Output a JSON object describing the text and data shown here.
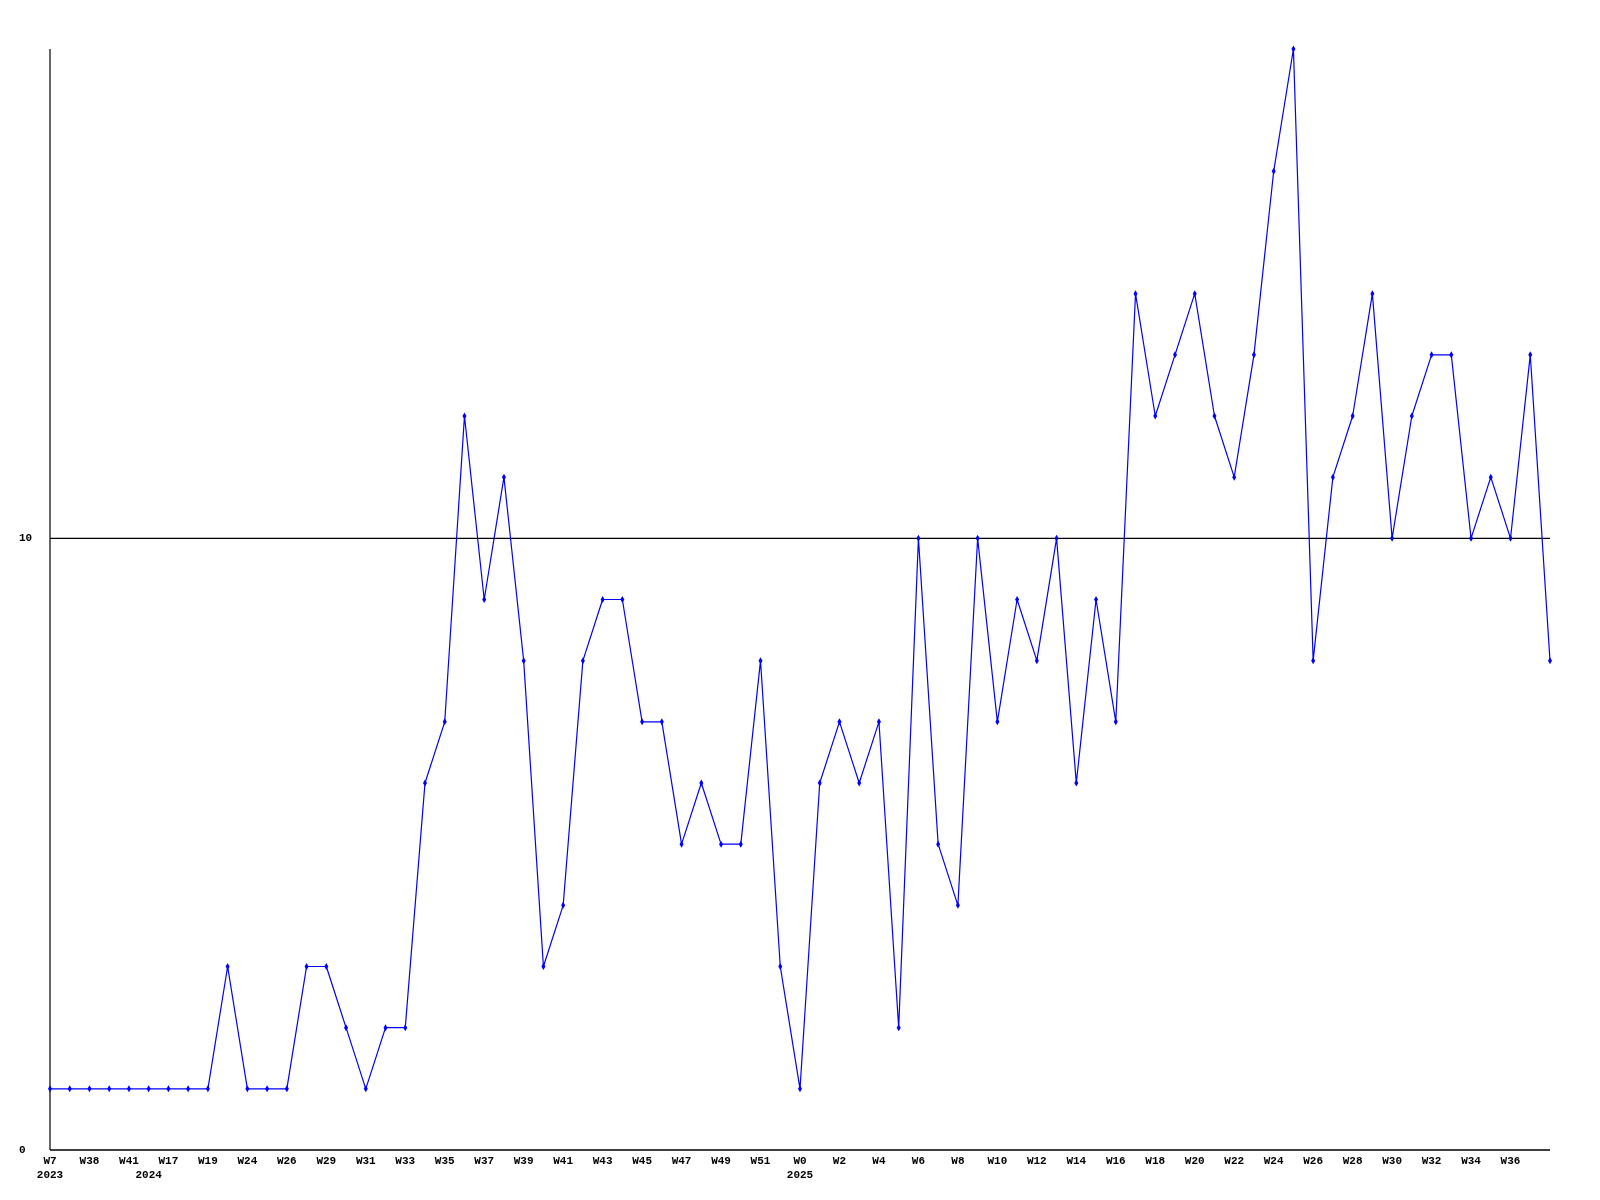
{
  "chart_data": {
    "type": "line",
    "categories": [
      "W7\n2023",
      null,
      "W38",
      null,
      "W41",
      "\n2024",
      "W17",
      null,
      "W19",
      null,
      "W24",
      null,
      "W26",
      null,
      "W29",
      null,
      "W31",
      null,
      "W33",
      null,
      "W35",
      null,
      "W37",
      null,
      "W39",
      null,
      "W41",
      null,
      "W43",
      null,
      "W45",
      null,
      "W47",
      null,
      "W49",
      null,
      "W51",
      null,
      "W0\n2025",
      null,
      "W2",
      null,
      "W4",
      null,
      "W6",
      null,
      "W8",
      null,
      "W10",
      null,
      "W12",
      null,
      "W14",
      null,
      "W16",
      null,
      "W18",
      null,
      "W20",
      null,
      "W22",
      null,
      "W24",
      null,
      "W26",
      null,
      "W28",
      null,
      "W30",
      null,
      "W32",
      null,
      "W34",
      null,
      "W36",
      null,
      null
    ],
    "values": [
      1,
      1,
      1,
      1,
      1,
      1,
      1,
      1,
      1,
      3,
      1,
      1,
      1,
      3,
      3,
      2,
      1,
      2,
      2,
      6,
      7,
      12,
      9,
      11,
      8,
      3,
      4,
      8,
      9,
      9,
      7,
      7,
      5,
      6,
      5,
      5,
      8,
      3,
      1,
      6,
      7,
      6,
      7,
      2,
      10,
      5,
      4,
      10,
      7,
      9,
      8,
      10,
      6,
      9,
      7,
      14,
      12,
      13,
      14,
      12,
      11,
      13,
      16,
      18,
      8,
      11,
      12,
      14,
      10,
      12,
      13,
      13,
      10,
      11,
      10,
      13,
      8
    ],
    "color": "#0000ff",
    "marker": "diamond",
    "ylim": [
      0,
      18
    ],
    "yticks": [
      0,
      10
    ],
    "grid": "y"
  }
}
